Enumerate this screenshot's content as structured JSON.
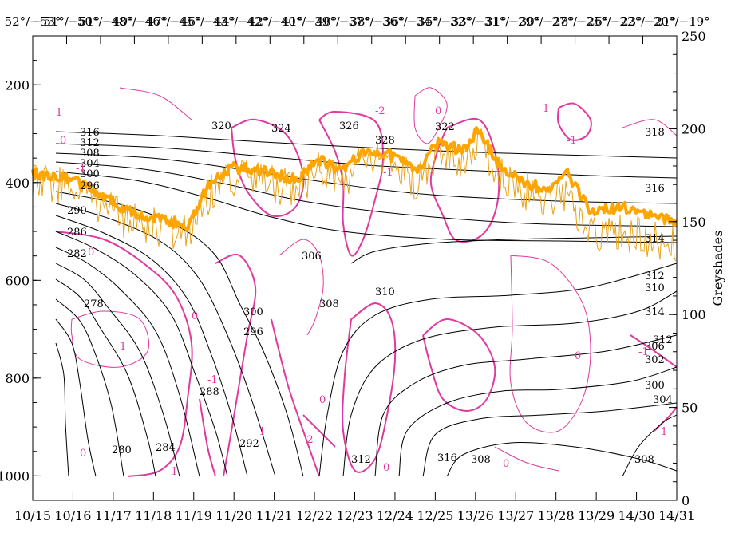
{
  "chart_data": {
    "type": "contour",
    "left_axis": {
      "ticks": [
        "200",
        "400",
        "600",
        "800",
        "1000"
      ],
      "tick_values": [
        200,
        400,
        600,
        800,
        1000
      ],
      "range": [
        100,
        1050
      ],
      "inverted": true
    },
    "right_axis": {
      "label": "Greyshades",
      "ticks": [
        "250",
        "200",
        "150",
        "100",
        "50",
        "0"
      ],
      "tick_values": [
        250,
        200,
        150,
        100,
        50,
        0
      ],
      "range": [
        0,
        250
      ]
    },
    "bottom_axis": {
      "ticks": [
        "10/15",
        "10/16",
        "11/17",
        "11/18",
        "11/19",
        "11/20",
        "11/21",
        "12/22",
        "12/23",
        "12/24",
        "12/25",
        "13/26",
        "13/27",
        "13/28",
        "13/29",
        "14/30",
        "14/31"
      ]
    },
    "top_axis": {
      "ticks": [
        "52°/−53°",
        "−51°/−51°",
        "−50°/−49°",
        "−48°/−47°",
        "−46°/−46°",
        "−45°/−44°",
        "−43°/−42°",
        "−42°/−41°",
        "−40°/−40°",
        "−39°/−38°",
        "−37°/−36°",
        "−36°/−35°",
        "−34°/−33°",
        "−32°/−31°",
        "−31°/−30°",
        "−29°/−28°",
        "−27°/−26°",
        "−25°/−23°",
        "−22°/−21°",
        "−20°/−19°"
      ]
    },
    "black_contour_labels": [
      "316",
      "312",
      "308",
      "304",
      "300",
      "296",
      "290",
      "286",
      "282",
      "278",
      "280",
      "284",
      "288",
      "292",
      "296",
      "300",
      "306",
      "308",
      "312",
      "316",
      "320",
      "324",
      "326",
      "328",
      "322",
      "318",
      "316",
      "314",
      "312",
      "310",
      "308",
      "306",
      "302",
      "300",
      "304",
      "308",
      "310",
      "312",
      "314"
    ],
    "magenta_contour_labels": [
      "1",
      "0",
      "0",
      "-1",
      "1",
      "0",
      "-2",
      "0",
      "1",
      "-1",
      "-1",
      "0",
      "-1",
      "0",
      "0",
      "0",
      "-1",
      "-1",
      "-2",
      "0",
      "1",
      "-1"
    ],
    "colors": {
      "black_contours": "#000000",
      "magenta_contours": "#e0399f",
      "thick_line": "#ffa500",
      "thin_line": "#e8a317"
    }
  }
}
